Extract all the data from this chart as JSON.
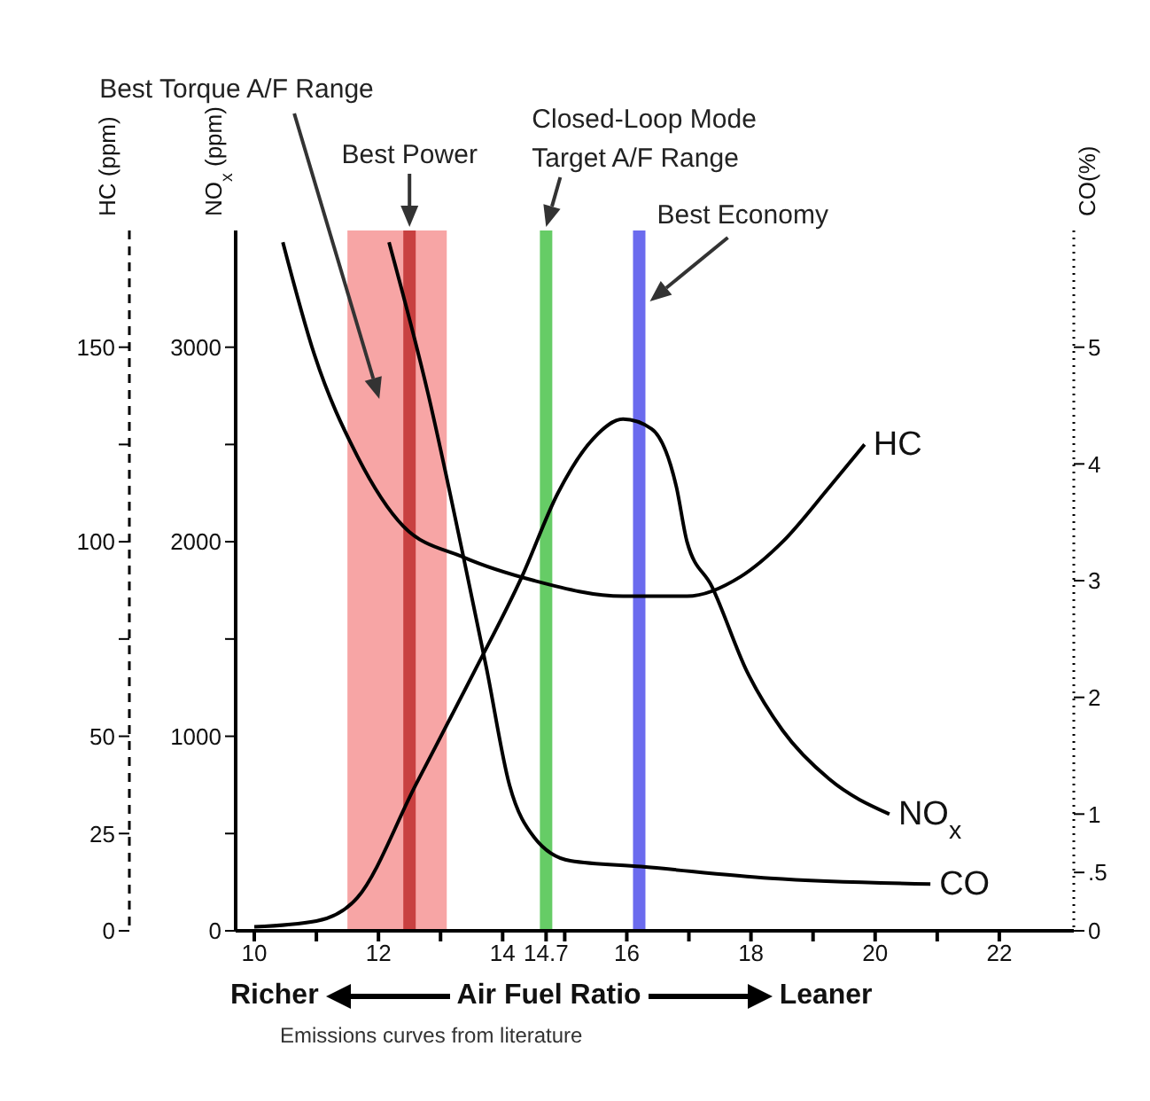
{
  "chart_data": {
    "type": "line",
    "xlabel": "Air Fuel Ratio",
    "ylabel": "NO$_{x}$ (ppm)",
    "y2label": "HC (ppm)",
    "y3label": "CO(%)",
    "xlim": [
      9.7,
      23.2
    ],
    "xticks": [
      10,
      {
        "value": 11,
        "label": null
      },
      12,
      {
        "value": 13,
        "label": null
      },
      14,
      14.7,
      {
        "value": 15,
        "label": null
      },
      16,
      {
        "value": 17,
        "label": null
      },
      18,
      {
        "value": 19,
        "label": null
      },
      20,
      {
        "value": 21,
        "label": null
      },
      22
    ],
    "ylim": [
      0,
      3600
    ],
    "yticks": [
      0,
      {
        "value": 500,
        "label": null
      },
      1000,
      {
        "value": 1500,
        "label": null
      },
      2000,
      {
        "value": 2500,
        "label": null
      },
      3000
    ],
    "y2lim": [
      0,
      180
    ],
    "y2ticks": [
      0,
      25,
      50,
      {
        "value": 75,
        "label": null
      },
      100,
      {
        "value": 125,
        "label": null
      },
      150
    ],
    "y3lim": [
      0,
      6
    ],
    "y3ticks": [
      0,
      {
        "value": 0.5,
        "label": ".5"
      },
      1,
      2,
      3,
      4,
      5
    ],
    "series": [
      {
        "name": "NO$_{x}$",
        "color": "#000000",
        "axis": "y",
        "x": [
          10,
          11,
          11.66,
          12.6,
          13.54,
          14.31,
          14.89,
          15.46,
          15.94,
          16.4,
          16.8,
          16.97,
          17.37,
          17.94,
          18.51,
          19.26,
          20.23
        ],
        "values": [
          20,
          50,
          170,
          750,
          1330,
          1820,
          2250,
          2530,
          2630,
          2580,
          2280,
          2000,
          1770,
          1330,
          1030,
          780,
          600
        ]
      },
      {
        "name": "HC",
        "color": "#000000",
        "axis": "y2",
        "x": [
          10.46,
          10.97,
          11.66,
          12.4,
          13.37,
          14.51,
          15.94,
          16.97,
          17.83,
          18.51,
          19.26,
          19.83
        ],
        "values": [
          177,
          148,
          122,
          104,
          96,
          90,
          86,
          86,
          91,
          100,
          114,
          125
        ]
      },
      {
        "name": "CO",
        "color": "#000000",
        "axis": "y3",
        "x": [
          12.17,
          12.8,
          13.37,
          13.74,
          14.11,
          14.51,
          15.09,
          16.23,
          18.31,
          20.89
        ],
        "values": [
          5.9,
          4.6,
          3.2,
          2.25,
          1.25,
          0.8,
          0.6,
          0.55,
          0.45,
          0.4
        ]
      }
    ],
    "bands": [
      {
        "axis": "x",
        "from": 11.5,
        "to": 13.1,
        "label": "Best Torque A/F Range",
        "color": "#f7a5a5"
      }
    ],
    "ref_lines": [
      {
        "axis": "x",
        "value": 12.5,
        "label": "Best Power",
        "color": "#c84040"
      },
      {
        "axis": "x",
        "value": 14.7,
        "label": "Closed-Loop Mode\nTarget A/F Range",
        "color": "#66cc66"
      },
      {
        "axis": "x",
        "value": 16.2,
        "label": "Best Economy",
        "color": "#6b6bee"
      }
    ],
    "annotations": [
      "Richer",
      "Leaner",
      "Emissions curves from literature"
    ],
    "marker": "none",
    "grid": false,
    "legend": false
  }
}
